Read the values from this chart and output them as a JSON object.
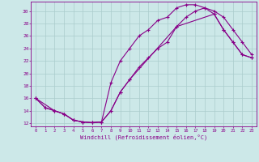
{
  "xlabel": "Windchill (Refroidissement éolien,°C)",
  "xlim": [
    -0.5,
    23.5
  ],
  "ylim": [
    11.5,
    31.5
  ],
  "xticks": [
    0,
    1,
    2,
    3,
    4,
    5,
    6,
    7,
    8,
    9,
    10,
    11,
    12,
    13,
    14,
    15,
    16,
    17,
    18,
    19,
    20,
    21,
    22,
    23
  ],
  "yticks": [
    12,
    14,
    16,
    18,
    20,
    22,
    24,
    26,
    28,
    30
  ],
  "background_color": "#cce8e8",
  "line_color": "#880088",
  "grid_color": "#aacccc",
  "line1_x": [
    0,
    1,
    2,
    3,
    4,
    5,
    6,
    7,
    8,
    9,
    10,
    11,
    12,
    13,
    14,
    15,
    16,
    17,
    18,
    19,
    20,
    21,
    22,
    23
  ],
  "line1_y": [
    16,
    14.5,
    14,
    13.5,
    12.5,
    12.2,
    12.1,
    12.2,
    18.5,
    22,
    24,
    26,
    27,
    28.5,
    29,
    30.5,
    31,
    31,
    30.5,
    29.5,
    27,
    25,
    23,
    22.5
  ],
  "line2_x": [
    0,
    1,
    2,
    3,
    4,
    5,
    6,
    7,
    8,
    9,
    10,
    11,
    12,
    13,
    14,
    15,
    16,
    17,
    18,
    19,
    20,
    21,
    22,
    23
  ],
  "line2_y": [
    16,
    14.5,
    14,
    13.5,
    12.5,
    12.2,
    12.1,
    12.2,
    14,
    17,
    19,
    21,
    22.5,
    24,
    25,
    27.5,
    29,
    30,
    30.5,
    30,
    29,
    27,
    25,
    23
  ],
  "line3_x": [
    0,
    2,
    3,
    4,
    5,
    6,
    7,
    8,
    9,
    10,
    15,
    19,
    20,
    21,
    22,
    23
  ],
  "line3_y": [
    16,
    14,
    13.5,
    12.5,
    12.2,
    12.1,
    12.2,
    14,
    17,
    19,
    27.5,
    29.5,
    27,
    25,
    23,
    22.5
  ]
}
